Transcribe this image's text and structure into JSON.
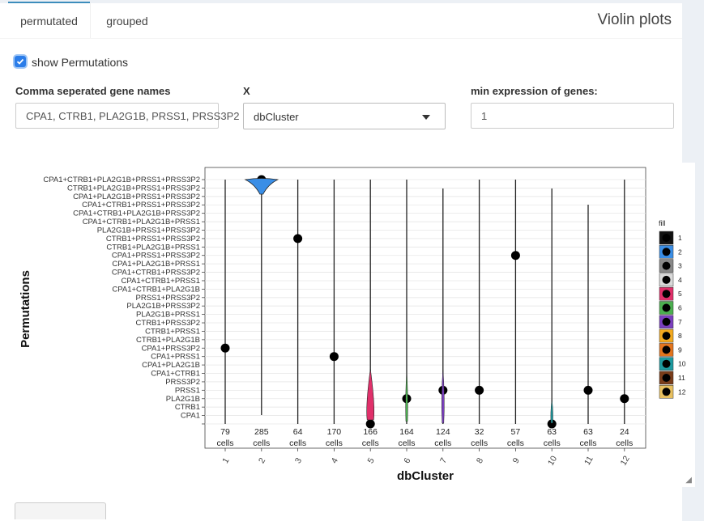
{
  "tabs": [
    {
      "label": "permutated"
    },
    {
      "label": "grouped"
    }
  ],
  "title": "Violin plots",
  "checkbox": {
    "label": "show Permutations",
    "checked": true
  },
  "fields": {
    "genes": {
      "label": "Comma seperated gene names",
      "value": "CPA1, CTRB1, PLA2G1B, PRSS1, PRSS3P2"
    },
    "x": {
      "label": "X",
      "value": "dbCluster"
    },
    "minexpr": {
      "label": "min expression of genes:",
      "value": "1"
    }
  },
  "chart_data": {
    "type": "violin",
    "xlabel": "dbCluster",
    "ylabel": "Permutations",
    "categories": [
      "1",
      "2",
      "3",
      "4",
      "5",
      "6",
      "7",
      "8",
      "9",
      "10",
      "11",
      "12"
    ],
    "y_levels_top_to_bottom": [
      "CPA1+CTRB1+PLA2G1B+PRSS1+PRSS3P2",
      "CTRB1+PLA2G1B+PRSS1+PRSS3P2",
      "CPA1+PLA2G1B+PRSS1+PRSS3P2",
      "CPA1+CTRB1+PRSS1+PRSS3P2",
      "CPA1+CTRB1+PLA2G1B+PRSS3P2",
      "CPA1+CTRB1+PLA2G1B+PRSS1",
      "PLA2G1B+PRSS1+PRSS3P2",
      "CTRB1+PRSS1+PRSS3P2",
      "CTRB1+PLA2G1B+PRSS1",
      "CPA1+PRSS1+PRSS3P2",
      "CPA1+PLA2G1B+PRSS1",
      "CPA1+CTRB1+PRSS3P2",
      "CPA1+CTRB1+PRSS1",
      "CPA1+CTRB1+PLA2G1B",
      "PRSS1+PRSS3P2",
      "PLA2G1B+PRSS3P2",
      "PLA2G1B+PRSS1",
      "CTRB1+PRSS3P2",
      "CTRB1+PRSS1",
      "CTRB1+PLA2G1B",
      "CPA1+PRSS3P2",
      "CPA1+PRSS1",
      "CPA1+PLA2G1B",
      "CPA1+CTRB1",
      "PRSS3P2",
      "PRSS1",
      "PLA2G1B",
      "CTRB1",
      "CPA1",
      ""
    ],
    "cell_counts": [
      "79",
      "285",
      "64",
      "170",
      "166",
      "164",
      "124",
      "32",
      "57",
      "63",
      "63",
      "24"
    ],
    "cells_label": "cells",
    "medians": [
      "CPA1+PRSS3P2",
      "CPA1+CTRB1+PLA2G1B+PRSS1+PRSS3P2",
      "CTRB1+PRSS1+PRSS3P2",
      "CPA1+PRSS1",
      "",
      "PLA2G1B",
      "PRSS1",
      "PRSS1",
      "CPA1+PRSS1+PRSS3P2",
      "",
      "PRSS1",
      "PLA2G1B"
    ],
    "legend": {
      "title": "fill",
      "labels": [
        "1",
        "2",
        "3",
        "4",
        "5",
        "6",
        "7",
        "8",
        "9",
        "10",
        "11",
        "12"
      ],
      "colors": [
        "#111111",
        "#3a8ee6",
        "#888888",
        "#d9d9d9",
        "#e0306a",
        "#4caf50",
        "#7b3fbf",
        "#f2a91f",
        "#e3751e",
        "#1e9aa0",
        "#7a3d1a",
        "#e8c060"
      ]
    },
    "grid": true
  }
}
